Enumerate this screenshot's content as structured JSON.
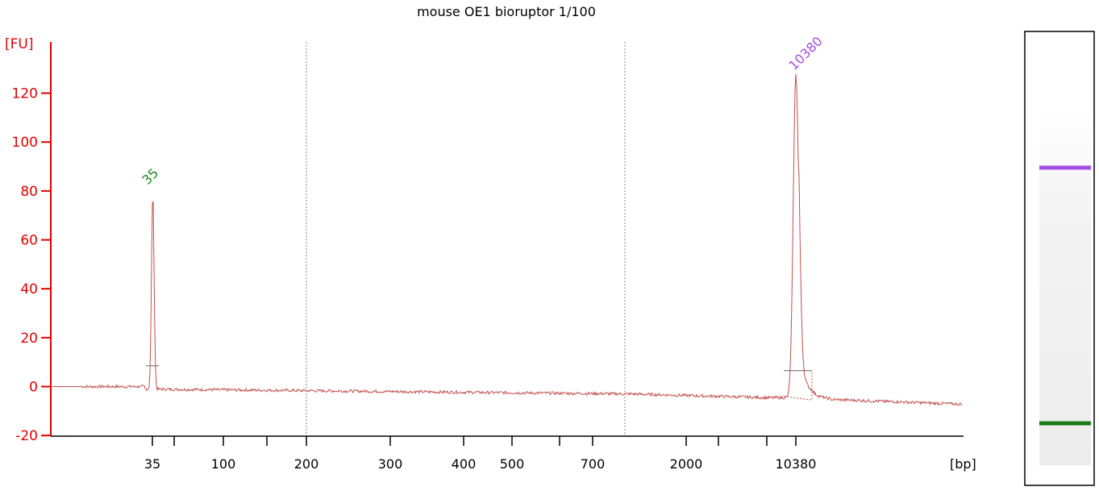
{
  "chart_data": {
    "type": "line",
    "title": "mouse OE1 bioruptor 1/100",
    "ylabel": "[FU]",
    "xlabel": "[bp]",
    "ylim": [
      -20,
      130
    ],
    "yticks": [
      -20,
      0,
      20,
      40,
      60,
      80,
      100,
      120
    ],
    "xticks": [
      "35",
      "100",
      "200",
      "300",
      "400",
      "500",
      "700",
      "2000",
      "10380"
    ],
    "grid_lines_at": [
      "200",
      "1000"
    ],
    "series": [
      {
        "color": "#c0504d",
        "x": [
          "start",
          "35",
          "35 peak",
          "35 end",
          "200",
          "1000",
          "10380 rise",
          "10380",
          "10380 end",
          "end"
        ],
        "points_bp_y": [
          {
            "x": 0,
            "y": 0
          },
          {
            "x": 35,
            "y": 79
          },
          {
            "x": 200,
            "y": -2
          },
          {
            "x": 1000,
            "y": -3
          },
          {
            "x": 10380,
            "y": 127
          },
          {
            "x": 20000,
            "y": -7
          }
        ]
      }
    ],
    "peaks": [
      {
        "label": "35",
        "value": 79,
        "color": "#1a8a1a"
      },
      {
        "label": "10380",
        "value": 127,
        "color": "#a64de6"
      }
    ]
  },
  "gel": {
    "bands": [
      {
        "name": "upper-marker",
        "color": "#a64de6"
      },
      {
        "name": "lower-marker",
        "color": "#1a7a1a"
      }
    ]
  },
  "colors": {
    "axis": "#e00000",
    "trace": "#c0504d"
  }
}
